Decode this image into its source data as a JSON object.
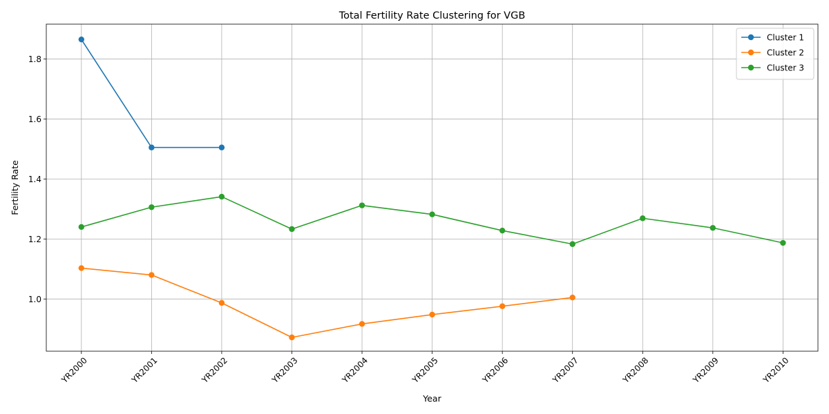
{
  "chart_data": {
    "type": "line",
    "title": "Total Fertility Rate Clustering for VGB",
    "xlabel": "Year",
    "ylabel": "Fertility Rate",
    "categories": [
      "YR2000",
      "YR2001",
      "YR2002",
      "YR2003",
      "YR2004",
      "YR2005",
      "YR2006",
      "YR2007",
      "YR2008",
      "YR2009",
      "YR2010"
    ],
    "ylim": [
      0.826,
      1.916
    ],
    "yticks": [
      1.0,
      1.2,
      1.4,
      1.6,
      1.8
    ],
    "ytick_labels": [
      "1.0",
      "1.2",
      "1.4",
      "1.6",
      "1.8"
    ],
    "grid": true,
    "legend_position": "top-right",
    "series": [
      {
        "name": "Cluster 1",
        "color": "#1f77b4",
        "values": [
          1.865,
          1.505,
          1.505,
          null,
          null,
          null,
          null,
          null,
          null,
          null,
          null
        ]
      },
      {
        "name": "Cluster 2",
        "color": "#ff7f0e",
        "values": [
          1.103,
          1.08,
          0.987,
          0.872,
          0.917,
          0.948,
          0.976,
          1.005,
          null,
          null,
          null
        ]
      },
      {
        "name": "Cluster 3",
        "color": "#2ca02c",
        "values": [
          1.24,
          1.306,
          1.341,
          1.233,
          1.312,
          1.282,
          1.228,
          1.183,
          1.269,
          1.237,
          1.187
        ]
      }
    ]
  }
}
